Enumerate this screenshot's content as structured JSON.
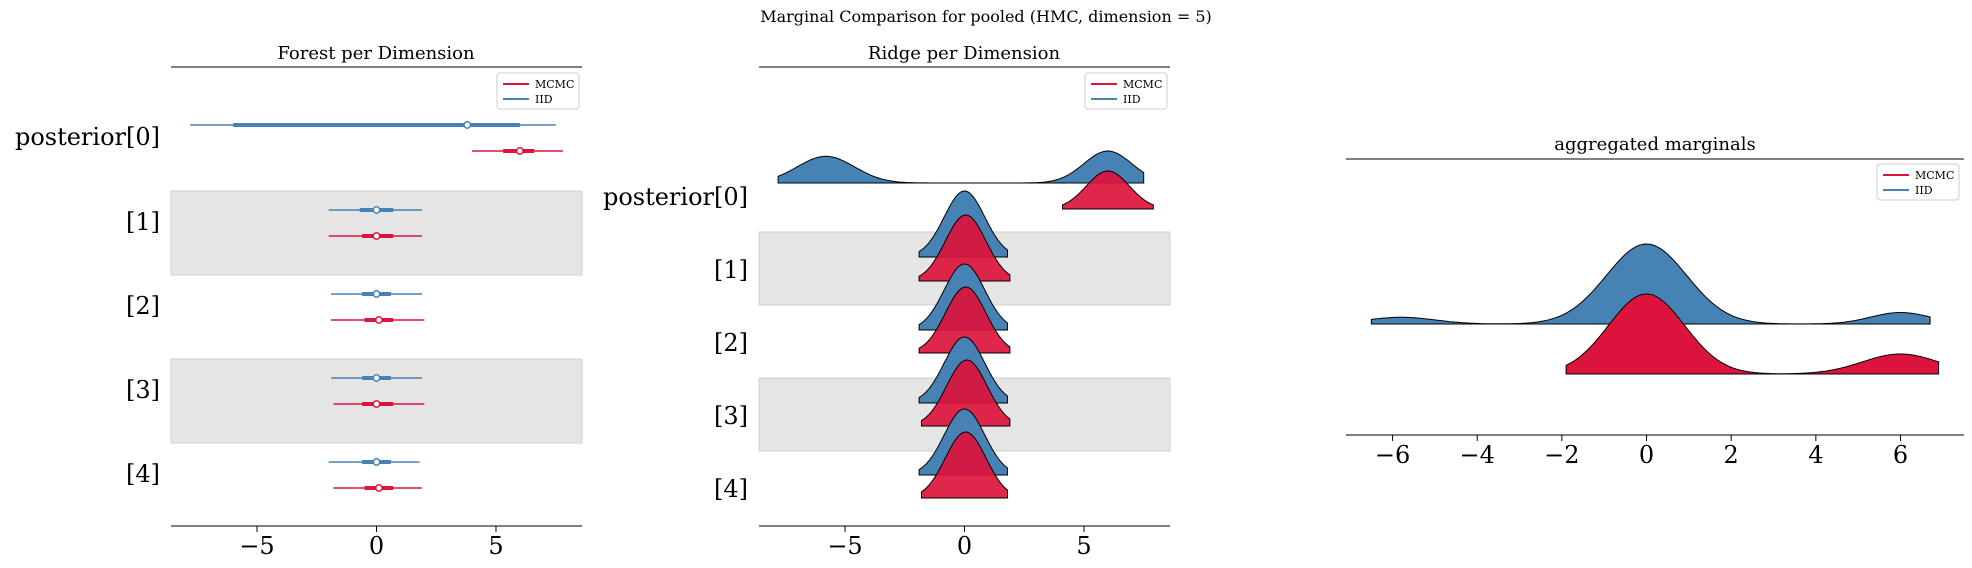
{
  "figure": {
    "suptitle": "Marginal Comparison for pooled (HMC, dimension = 5)"
  },
  "colors": {
    "mcmc": "#dc143c",
    "iid": "#4682b4",
    "band": "#e5e5e5",
    "band_edge": "#cfcfcf",
    "outline": "#000000"
  },
  "chart_data": [
    {
      "type": "forest",
      "title": "Forest per Dimension",
      "xlabel": "",
      "xlim": [
        -8.6,
        8.6
      ],
      "xticks": [
        -5,
        0,
        5
      ],
      "xtick_labels": [
        "−5",
        "0",
        "5"
      ],
      "row_labels": [
        "posterior[0]",
        "[1]",
        "[2]",
        "[3]",
        "[4]"
      ],
      "legend": {
        "position": "top-right",
        "entries": [
          "MCMC",
          "IID"
        ]
      },
      "shaded_rows": [
        1,
        3
      ],
      "series": [
        {
          "name": "IID",
          "color": "iid",
          "rows": [
            {
              "low": -7.8,
              "q1": -6.0,
              "median": 3.8,
              "q3": 6.0,
              "high": 7.5
            },
            {
              "low": -2.0,
              "q1": -0.7,
              "median": 0.0,
              "q3": 0.7,
              "high": 1.9
            },
            {
              "low": -1.9,
              "q1": -0.6,
              "median": 0.0,
              "q3": 0.6,
              "high": 1.9
            },
            {
              "low": -1.9,
              "q1": -0.6,
              "median": 0.0,
              "q3": 0.6,
              "high": 1.9
            },
            {
              "low": -2.0,
              "q1": -0.6,
              "median": 0.0,
              "q3": 0.6,
              "high": 1.8
            }
          ]
        },
        {
          "name": "MCMC",
          "color": "mcmc",
          "rows": [
            {
              "low": 4.0,
              "q1": 5.3,
              "median": 6.0,
              "q3": 6.6,
              "high": 7.8
            },
            {
              "low": -2.0,
              "q1": -0.6,
              "median": 0.0,
              "q3": 0.7,
              "high": 1.9
            },
            {
              "low": -1.9,
              "q1": -0.5,
              "median": 0.1,
              "q3": 0.7,
              "high": 2.0
            },
            {
              "low": -1.8,
              "q1": -0.6,
              "median": 0.0,
              "q3": 0.7,
              "high": 2.0
            },
            {
              "low": -1.8,
              "q1": -0.5,
              "median": 0.1,
              "q3": 0.7,
              "high": 1.9
            }
          ]
        }
      ]
    },
    {
      "type": "ridgeline",
      "title": "Ridge per Dimension",
      "xlabel": "",
      "xlim": [
        -8.6,
        8.6
      ],
      "xticks": [
        -5,
        0,
        5
      ],
      "xtick_labels": [
        "−5",
        "0",
        "5"
      ],
      "row_labels": [
        "posterior[0]",
        "[1]",
        "[2]",
        "[3]",
        "[4]"
      ],
      "legend": {
        "position": "top-right",
        "entries": [
          "MCMC",
          "IID"
        ]
      },
      "shaded_rows": [
        1,
        3
      ],
      "series": [
        {
          "name": "IID",
          "color": "iid",
          "rows": [
            {
              "range": [
                -7.8,
                7.5
              ],
              "peaks": [
                {
                  "mu": -5.8,
                  "sigma": 1.2,
                  "w": 0.5
                },
                {
                  "mu": 6.0,
                  "sigma": 1.0,
                  "w": 0.5
                }
              ]
            },
            {
              "range": [
                -1.9,
                1.8
              ],
              "peaks": [
                {
                  "mu": 0.0,
                  "sigma": 0.85,
                  "w": 1
                }
              ]
            },
            {
              "range": [
                -1.9,
                1.8
              ],
              "peaks": [
                {
                  "mu": 0.0,
                  "sigma": 0.85,
                  "w": 1
                }
              ]
            },
            {
              "range": [
                -1.9,
                1.8
              ],
              "peaks": [
                {
                  "mu": 0.0,
                  "sigma": 0.85,
                  "w": 1
                }
              ]
            },
            {
              "range": [
                -1.9,
                1.8
              ],
              "peaks": [
                {
                  "mu": 0.0,
                  "sigma": 0.85,
                  "w": 1
                }
              ]
            }
          ]
        },
        {
          "name": "MCMC",
          "color": "mcmc",
          "rows": [
            {
              "range": [
                4.1,
                7.9
              ],
              "peaks": [
                {
                  "mu": 6.0,
                  "sigma": 0.9,
                  "w": 1
                }
              ]
            },
            {
              "range": [
                -1.9,
                1.9
              ],
              "peaks": [
                {
                  "mu": 0.05,
                  "sigma": 0.85,
                  "w": 1
                }
              ]
            },
            {
              "range": [
                -1.9,
                1.9
              ],
              "peaks": [
                {
                  "mu": 0.05,
                  "sigma": 0.85,
                  "w": 1
                }
              ]
            },
            {
              "range": [
                -1.8,
                1.9
              ],
              "peaks": [
                {
                  "mu": 0.1,
                  "sigma": 0.85,
                  "w": 1
                }
              ]
            },
            {
              "range": [
                -1.8,
                1.8
              ],
              "peaks": [
                {
                  "mu": 0.05,
                  "sigma": 0.85,
                  "w": 1
                }
              ]
            }
          ]
        }
      ]
    },
    {
      "type": "ridgeline",
      "title": "aggregated marginals",
      "xlabel": "",
      "xlim": [
        -7.1,
        7.5
      ],
      "xticks": [
        -6,
        -4,
        -2,
        0,
        2,
        4,
        6
      ],
      "xtick_labels": [
        "−6",
        "−4",
        "−2",
        "0",
        "2",
        "4",
        "6"
      ],
      "legend": {
        "position": "top-right",
        "entries": [
          "MCMC",
          "IID"
        ]
      },
      "series": [
        {
          "name": "IID",
          "color": "iid",
          "range": [
            -6.5,
            6.7
          ],
          "peaks": [
            {
              "mu": -5.8,
              "sigma": 0.8,
              "w": 0.06
            },
            {
              "mu": 0.0,
              "sigma": 0.95,
              "w": 0.85
            },
            {
              "mu": 6.0,
              "sigma": 0.7,
              "w": 0.09
            }
          ]
        },
        {
          "name": "MCMC",
          "color": "mcmc",
          "range": [
            -1.9,
            6.9
          ],
          "peaks": [
            {
              "mu": 0.0,
              "sigma": 0.9,
              "w": 0.8
            },
            {
              "mu": 6.0,
              "sigma": 0.9,
              "w": 0.2
            }
          ]
        }
      ]
    }
  ]
}
